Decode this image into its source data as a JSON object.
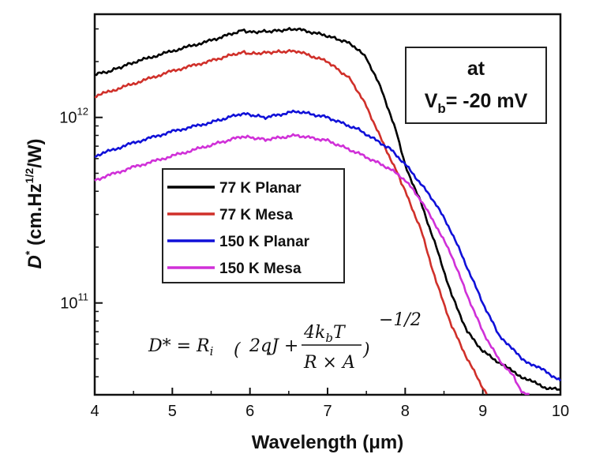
{
  "chart_data": {
    "type": "line",
    "xlabel": "Wavelength (μm)",
    "ylabel_main": "D",
    "ylabel_sup": "*",
    "ylabel_rest": " (cm.Hz",
    "ylabel_sup2": "1/2",
    "ylabel_end": "/W)",
    "xlim": [
      4,
      10
    ],
    "ylim": [
      32000000000.0,
      3600000000000.0
    ],
    "yscale": "log",
    "x_ticks": [
      "4",
      "5",
      "6",
      "7",
      "8",
      "9",
      "10"
    ],
    "y_ticks": [
      {
        "base": "10",
        "exp": "12",
        "value": 1000000000000.0
      },
      {
        "base": "10",
        "exp": "11",
        "value": 100000000000.0
      }
    ],
    "legend_position": "center-left",
    "annotation": {
      "line1": "at",
      "line2_main": "V",
      "line2_sub": "b",
      "line2_rest": "= -20 mV"
    },
    "formula": {
      "lhs": "D* = R",
      "lhs_sub": "i",
      "inner": "2qJ +",
      "num": "4k",
      "num_sub": "b",
      "num_end": "T",
      "den": "R × A",
      "exp": "−1/2"
    },
    "series": [
      {
        "name": "77 K Planar",
        "color": "#000000",
        "points": [
          [
            4.0,
            1700000000000.0
          ],
          [
            4.2,
            1780000000000.0
          ],
          [
            4.5,
            1980000000000.0
          ],
          [
            5.0,
            2280000000000.0
          ],
          [
            5.5,
            2600000000000.0
          ],
          [
            5.9,
            2950000000000.0
          ],
          [
            6.0,
            2880000000000.0
          ],
          [
            6.3,
            2920000000000.0
          ],
          [
            6.6,
            3000000000000.0
          ],
          [
            7.0,
            2750000000000.0
          ],
          [
            7.3,
            2500000000000.0
          ],
          [
            7.5,
            2100000000000.0
          ],
          [
            7.7,
            1400000000000.0
          ],
          [
            7.9,
            800000000000.0
          ],
          [
            8.0,
            550000000000.0
          ],
          [
            8.2,
            350000000000.0
          ],
          [
            8.4,
            200000000000.0
          ],
          [
            8.6,
            110000000000.0
          ],
          [
            8.8,
            70000000000.0
          ],
          [
            9.0,
            55000000000.0
          ],
          [
            9.2,
            48000000000.0
          ],
          [
            9.5,
            40000000000.0
          ],
          [
            9.8,
            35000000000.0
          ],
          [
            10.0,
            34000000000.0
          ]
        ]
      },
      {
        "name": "77 K Mesa",
        "color": "#d0302a",
        "points": [
          [
            4.0,
            1300000000000.0
          ],
          [
            4.5,
            1520000000000.0
          ],
          [
            5.0,
            1780000000000.0
          ],
          [
            5.5,
            2020000000000.0
          ],
          [
            5.9,
            2250000000000.0
          ],
          [
            6.0,
            2200000000000.0
          ],
          [
            6.3,
            2250000000000.0
          ],
          [
            6.6,
            2280000000000.0
          ],
          [
            7.0,
            2000000000000.0
          ],
          [
            7.3,
            1600000000000.0
          ],
          [
            7.5,
            1150000000000.0
          ],
          [
            7.7,
            750000000000.0
          ],
          [
            7.9,
            500000000000.0
          ],
          [
            8.0,
            400000000000.0
          ],
          [
            8.2,
            250000000000.0
          ],
          [
            8.4,
            130000000000.0
          ],
          [
            8.6,
            75000000000.0
          ],
          [
            8.8,
            50000000000.0
          ],
          [
            9.0,
            35000000000.0
          ],
          [
            9.05,
            32000000000.0
          ]
        ]
      },
      {
        "name": "150 K Planar",
        "color": "#1010d8",
        "points": [
          [
            4.0,
            620000000000.0
          ],
          [
            4.5,
            730000000000.0
          ],
          [
            5.0,
            840000000000.0
          ],
          [
            5.5,
            940000000000.0
          ],
          [
            5.9,
            1050000000000.0
          ],
          [
            6.2,
            1000000000000.0
          ],
          [
            6.6,
            1080000000000.0
          ],
          [
            7.0,
            1000000000000.0
          ],
          [
            7.4,
            860000000000.0
          ],
          [
            7.8,
            680000000000.0
          ],
          [
            8.0,
            560000000000.0
          ],
          [
            8.2,
            440000000000.0
          ],
          [
            8.4,
            340000000000.0
          ],
          [
            8.6,
            240000000000.0
          ],
          [
            8.8,
            155000000000.0
          ],
          [
            9.0,
            100000000000.0
          ],
          [
            9.2,
            68000000000.0
          ],
          [
            9.5,
            50000000000.0
          ],
          [
            9.8,
            43000000000.0
          ],
          [
            10.0,
            38000000000.0
          ]
        ]
      },
      {
        "name": "150 K Mesa",
        "color": "#d030d8",
        "points": [
          [
            4.0,
            460000000000.0
          ],
          [
            4.5,
            540000000000.0
          ],
          [
            5.0,
            620000000000.0
          ],
          [
            5.5,
            710000000000.0
          ],
          [
            5.9,
            790000000000.0
          ],
          [
            6.2,
            760000000000.0
          ],
          [
            6.6,
            800000000000.0
          ],
          [
            7.0,
            750000000000.0
          ],
          [
            7.4,
            640000000000.0
          ],
          [
            7.8,
            530000000000.0
          ],
          [
            8.0,
            460000000000.0
          ],
          [
            8.2,
            360000000000.0
          ],
          [
            8.4,
            260000000000.0
          ],
          [
            8.6,
            180000000000.0
          ],
          [
            8.8,
            110000000000.0
          ],
          [
            9.0,
            70000000000.0
          ],
          [
            9.2,
            50000000000.0
          ],
          [
            9.4,
            40000000000.0
          ],
          [
            9.5,
            33000000000.0
          ],
          [
            9.6,
            32000000000.0
          ]
        ]
      }
    ]
  }
}
